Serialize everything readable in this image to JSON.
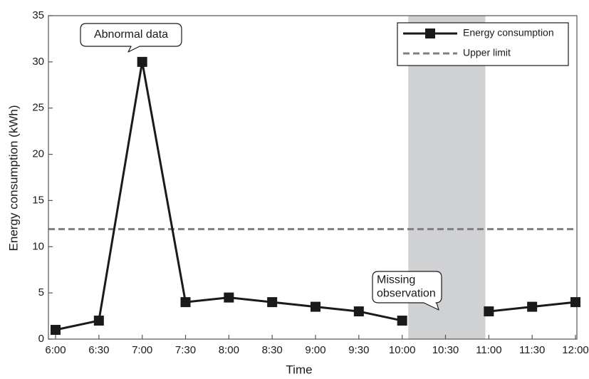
{
  "chart_data": {
    "type": "line",
    "x_label": "Time",
    "y_label": "Energy consumption (kWh)",
    "categories": [
      "6:00",
      "6:30",
      "7:00",
      "7:30",
      "8:00",
      "8:30",
      "9:00",
      "9:30",
      "10:00",
      "10:30",
      "11:00",
      "11:30",
      "12:00"
    ],
    "series": [
      {
        "name": "Energy consumption",
        "color": "#1a1a1a",
        "values": [
          1,
          2,
          30,
          4,
          4.5,
          4,
          3.5,
          3,
          2,
          null,
          3,
          3.5,
          4
        ]
      }
    ],
    "reference_lines": [
      {
        "name": "Upper limit",
        "value": 11.9,
        "color": "#808080",
        "style": "dashed"
      }
    ],
    "shaded_range": [
      "10:00",
      "11:00"
    ],
    "shade_color": "#d0d1d3",
    "annotations": [
      {
        "lines": [
          "Abnormal data"
        ]
      },
      {
        "lines": [
          "Missing",
          "observation"
        ]
      }
    ],
    "ylim": [
      0,
      35
    ],
    "yticks": [
      0,
      5,
      10,
      15,
      20,
      25,
      30,
      35
    ],
    "grid": false,
    "legend": "upper right"
  }
}
